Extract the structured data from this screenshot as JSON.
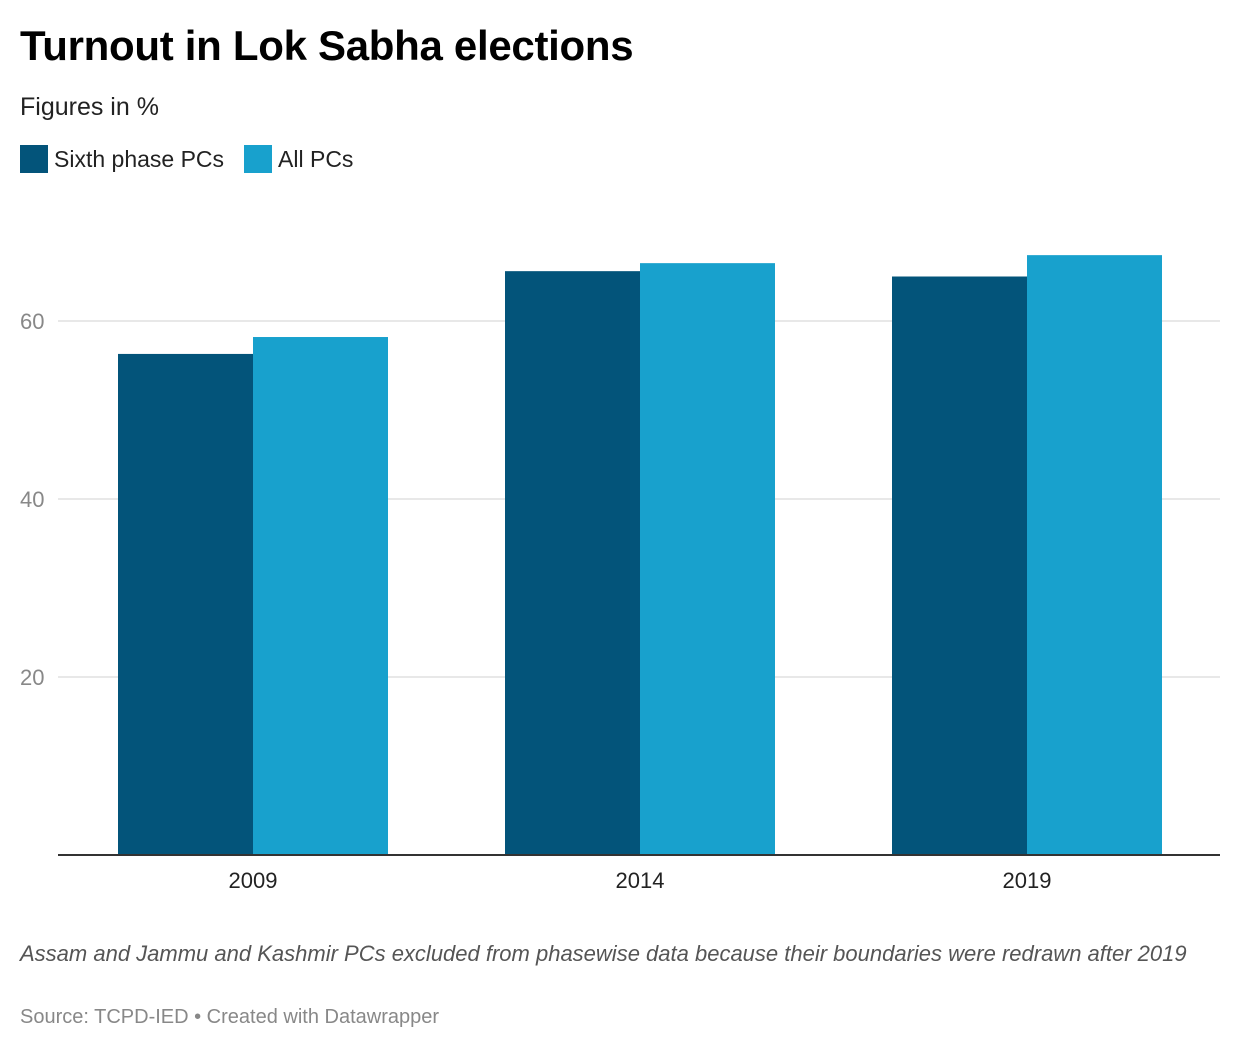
{
  "header": {
    "title": "Turnout in Lok Sabha elections",
    "subtitle": "Figures in %"
  },
  "legend": {
    "items": [
      {
        "label": "Sixth phase PCs",
        "color": "#03547a"
      },
      {
        "label": "All PCs",
        "color": "#18a1cd"
      }
    ]
  },
  "chart_data": {
    "type": "bar",
    "categories": [
      "2009",
      "2014",
      "2019"
    ],
    "series": [
      {
        "name": "Sixth phase PCs",
        "values": [
          56.3,
          65.6,
          65.0
        ],
        "color": "#03547a"
      },
      {
        "name": "All PCs",
        "values": [
          58.2,
          66.5,
          67.4
        ],
        "color": "#18a1cd"
      }
    ],
    "title": "Turnout in Lok Sabha elections",
    "subtitle": "Figures in %",
    "xlabel": "",
    "ylabel": "",
    "ylim": [
      0,
      70
    ],
    "yticks": [
      20,
      40,
      60
    ],
    "grid": true,
    "legend_position": "top-left"
  },
  "footer": {
    "note": "Assam and Jammu and Kashmir PCs excluded from phasewise data because their boundaries were redrawn after 2019",
    "source": "Source: TCPD-IED • Created with Datawrapper"
  }
}
